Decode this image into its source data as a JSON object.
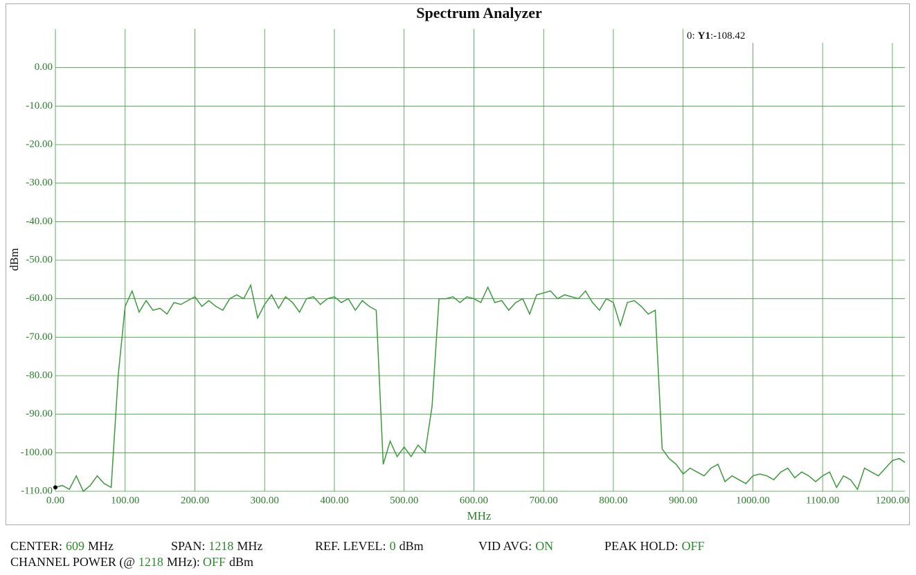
{
  "chart_data": {
    "type": "line",
    "title": "Spectrum Analyzer",
    "x_label": "MHz",
    "y_label": "dBm",
    "x": [
      0,
      10,
      20,
      30,
      40,
      50,
      60,
      70,
      80,
      90,
      100,
      110,
      120,
      130,
      140,
      150,
      160,
      170,
      180,
      190,
      200,
      210,
      220,
      230,
      240,
      250,
      260,
      270,
      280,
      290,
      300,
      310,
      320,
      330,
      340,
      350,
      360,
      370,
      380,
      390,
      400,
      410,
      420,
      430,
      440,
      450,
      460,
      470,
      480,
      490,
      500,
      510,
      520,
      530,
      540,
      550,
      560,
      570,
      580,
      590,
      600,
      610,
      620,
      630,
      640,
      650,
      660,
      670,
      680,
      690,
      700,
      710,
      720,
      730,
      740,
      750,
      760,
      770,
      780,
      790,
      800,
      810,
      820,
      830,
      840,
      850,
      860,
      870,
      880,
      890,
      900,
      910,
      920,
      930,
      940,
      950,
      960,
      970,
      980,
      990,
      1000,
      1010,
      1020,
      1030,
      1040,
      1050,
      1060,
      1070,
      1080,
      1090,
      1100,
      1110,
      1120,
      1130,
      1140,
      1150,
      1160,
      1170,
      1180,
      1190,
      1200,
      1210,
      1218
    ],
    "series": [
      {
        "name": "Y1",
        "color": "#3c9a3c",
        "values": [
          -109,
          -108.5,
          -109.5,
          -106,
          -110,
          -108.5,
          -106,
          -108,
          -109,
          -80,
          -62,
          -58,
          -63.5,
          -60.5,
          -63,
          -62.5,
          -64,
          -61,
          -61.5,
          -60.5,
          -59.5,
          -62,
          -60.5,
          -62,
          -63,
          -60,
          -59,
          -60,
          -56.5,
          -65,
          -61.5,
          -59,
          -62.5,
          -59.5,
          -61,
          -63.5,
          -60,
          -59.5,
          -61.5,
          -60,
          -59.5,
          -61,
          -60,
          -63,
          -60.5,
          -62,
          -63,
          -103,
          -97,
          -101,
          -98.5,
          -101,
          -98,
          -100,
          -88,
          -60,
          -60,
          -59.5,
          -61,
          -59.5,
          -60,
          -61,
          -57,
          -61,
          -60.5,
          -63,
          -61,
          -60,
          -64,
          -59,
          -58.5,
          -58,
          -60,
          -59,
          -59.5,
          -60,
          -58,
          -61,
          -63,
          -60,
          -61,
          -67,
          -61,
          -60.5,
          -62,
          -64,
          -63,
          -99,
          -101.5,
          -103,
          -105.5,
          -104,
          -105,
          -106,
          -104,
          -103,
          -107.5,
          -106,
          -107,
          -108,
          -106,
          -105.5,
          -106,
          -107,
          -105,
          -104,
          -106.5,
          -105,
          -106,
          -107.5,
          -106,
          -105,
          -109,
          -106,
          -107,
          -109.5,
          -104,
          -105,
          -106,
          -104,
          -102,
          -101.5,
          -102.5
        ]
      }
    ],
    "xlim": [
      0,
      1218
    ],
    "ylim": [
      -110,
      10
    ],
    "xticks": [
      {
        "value": 0,
        "label": "0.00"
      },
      {
        "value": 100,
        "label": "100.00"
      },
      {
        "value": 200,
        "label": "200.00"
      },
      {
        "value": 300,
        "label": "300.00"
      },
      {
        "value": 400,
        "label": "400.00"
      },
      {
        "value": 500,
        "label": "500.00"
      },
      {
        "value": 600,
        "label": "600.00"
      },
      {
        "value": 700,
        "label": "700.00"
      },
      {
        "value": 800,
        "label": "800.00"
      },
      {
        "value": 900,
        "label": "900.00"
      },
      {
        "value": 1000,
        "label": "1000.00"
      },
      {
        "value": 1100,
        "label": "1100.00"
      },
      {
        "value": 1200,
        "label": "1200.00"
      }
    ],
    "yticks": [
      {
        "value": 0,
        "label": "0.00"
      },
      {
        "value": -10,
        "label": "-10.00"
      },
      {
        "value": -20,
        "label": "-20.00"
      },
      {
        "value": -30,
        "label": "-30.00"
      },
      {
        "value": -40,
        "label": "-40.00"
      },
      {
        "value": -50,
        "label": "-50.00"
      },
      {
        "value": -60,
        "label": "-60.00"
      },
      {
        "value": -70,
        "label": "-70.00"
      },
      {
        "value": -80,
        "label": "-80.00"
      },
      {
        "value": -90,
        "label": "-90.00"
      },
      {
        "value": -100,
        "label": "-100.00"
      },
      {
        "value": -110,
        "label": "-110.00"
      }
    ],
    "grid": true,
    "marker": {
      "prefix": "0:",
      "name": "Y1",
      "value": ":-108.42"
    }
  },
  "status": [
    [
      {
        "label": "CENTER:",
        "value": "609",
        "unit": "MHz"
      },
      {
        "label": "SPAN:",
        "value": "1218",
        "unit": "MHz"
      },
      {
        "label": "REF. LEVEL:",
        "value": "0",
        "unit": "dBm"
      },
      {
        "label": "VID AVG:",
        "value": "ON"
      },
      {
        "label": "PEAK HOLD:",
        "value": "OFF"
      }
    ],
    [
      {
        "label": "CHANNEL POWER (@",
        "value": "1218",
        "unit": "MHz):",
        "value2": "OFF",
        "unit2": "dBm"
      }
    ]
  ]
}
